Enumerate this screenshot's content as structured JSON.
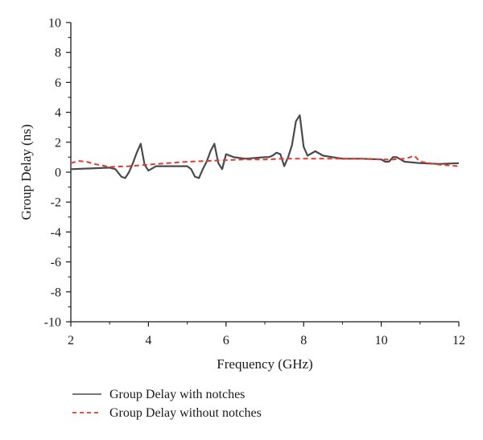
{
  "chart_data": {
    "type": "line",
    "title": "",
    "xlabel": "Frequency (GHz)",
    "ylabel": "Group Delay (ns)",
    "xlim": [
      2,
      12
    ],
    "ylim": [
      -10,
      10
    ],
    "xticks": [
      2,
      4,
      6,
      8,
      10,
      12
    ],
    "yticks": [
      -10,
      -8,
      -6,
      -4,
      -2,
      0,
      2,
      4,
      6,
      8,
      10
    ],
    "grid": false,
    "legend_position": "bottom",
    "series": [
      {
        "name": "Group Delay with notches",
        "color": "#4a4a4a",
        "style": "solid",
        "x": [
          2.0,
          2.5,
          3.0,
          3.15,
          3.3,
          3.4,
          3.5,
          3.6,
          3.7,
          3.8,
          3.9,
          4.0,
          4.2,
          4.6,
          5.0,
          5.1,
          5.2,
          5.3,
          5.4,
          5.5,
          5.6,
          5.7,
          5.8,
          5.9,
          6.0,
          6.2,
          6.5,
          7.0,
          7.1,
          7.2,
          7.3,
          7.4,
          7.5,
          7.6,
          7.7,
          7.8,
          7.9,
          8.0,
          8.1,
          8.3,
          8.5,
          9.0,
          9.5,
          10.0,
          10.1,
          10.2,
          10.3,
          10.4,
          10.6,
          11.0,
          11.5,
          12.0
        ],
        "y": [
          0.2,
          0.25,
          0.3,
          0.2,
          -0.3,
          -0.4,
          0.0,
          0.6,
          1.3,
          1.9,
          0.5,
          0.1,
          0.4,
          0.4,
          0.4,
          0.2,
          -0.3,
          -0.4,
          0.2,
          0.7,
          1.4,
          1.9,
          0.6,
          0.2,
          1.2,
          1.0,
          0.9,
          1.0,
          1.0,
          1.1,
          1.3,
          1.2,
          0.4,
          1.0,
          1.8,
          3.4,
          3.8,
          1.7,
          1.1,
          1.4,
          1.1,
          0.9,
          0.9,
          0.85,
          0.7,
          0.7,
          1.0,
          1.0,
          0.7,
          0.6,
          0.55,
          0.6
        ]
      },
      {
        "name": "Group Delay without notches",
        "color": "#e8382d",
        "style": "dashed",
        "x": [
          2.0,
          2.2,
          2.4,
          2.6,
          2.8,
          3.0,
          3.5,
          4.0,
          4.5,
          5.0,
          5.5,
          6.0,
          6.5,
          7.0,
          7.5,
          8.0,
          8.5,
          9.0,
          9.5,
          10.0,
          10.3,
          10.6,
          10.75,
          10.85,
          11.0,
          11.5,
          12.0
        ],
        "y": [
          0.6,
          0.75,
          0.7,
          0.55,
          0.45,
          0.35,
          0.4,
          0.5,
          0.6,
          0.7,
          0.75,
          0.8,
          0.85,
          0.85,
          0.9,
          0.9,
          0.9,
          0.9,
          0.9,
          0.85,
          0.85,
          0.9,
          1.0,
          1.1,
          0.7,
          0.5,
          0.4
        ]
      }
    ]
  }
}
